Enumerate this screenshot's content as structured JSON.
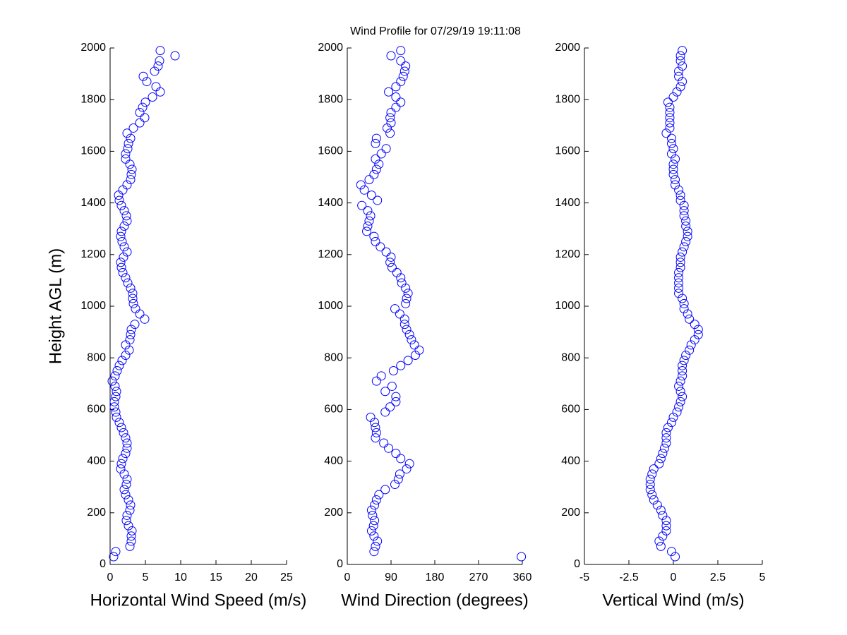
{
  "title": "Wind Profile for  07/29/19 19:11:08",
  "chart_data": [
    {
      "type": "scatter",
      "xlabel": "Horizontal Wind Speed (m/s)",
      "ylabel": "Height AGL (m)",
      "color": "#0000ff",
      "xlim": [
        0,
        25
      ],
      "xticks": [
        0,
        5,
        10,
        15,
        20,
        25
      ],
      "ylim": [
        0,
        2000
      ],
      "yticks": [
        0,
        200,
        400,
        600,
        800,
        1000,
        1200,
        1400,
        1600,
        1800,
        2000
      ],
      "x": [
        0.5,
        0.8,
        2.8,
        3.0,
        3.0,
        3.1,
        2.6,
        2.3,
        2.4,
        2.8,
        2.9,
        2.6,
        2.2,
        2.0,
        2.3,
        2.4,
        2.0,
        1.5,
        1.6,
        1.8,
        2.2,
        2.4,
        2.4,
        2.2,
        1.9,
        1.6,
        1.3,
        0.9,
        0.8,
        0.6,
        0.6,
        0.8,
        0.9,
        0.7,
        0.3,
        0.7,
        1.0,
        1.3,
        1.7,
        2.2,
        2.7,
        2.2,
        2.8,
        2.9,
        3.0,
        3.5,
        4.9,
        4.2,
        3.6,
        3.3,
        3.2,
        3.2,
        2.9,
        2.5,
        2.2,
        1.8,
        1.6,
        1.5,
        1.9,
        2.4,
        2.0,
        1.7,
        1.5,
        1.6,
        2.0,
        2.4,
        2.3,
        2.0,
        1.6,
        1.3,
        1.2,
        1.8,
        2.4,
        2.9,
        3.0,
        3.1,
        2.8,
        2.2,
        2.2,
        2.5,
        2.6,
        2.9,
        2.4,
        3.3,
        4.2,
        4.9,
        4.2,
        4.6,
        5.0,
        6.0,
        7.1,
        6.5,
        5.2,
        4.7,
        6.3,
        6.8,
        7.0,
        9.2,
        7.1
      ],
      "y": [
        30,
        50,
        70,
        90,
        110,
        130,
        150,
        170,
        190,
        210,
        230,
        250,
        270,
        290,
        310,
        330,
        350,
        370,
        390,
        410,
        430,
        450,
        470,
        490,
        510,
        530,
        550,
        570,
        590,
        610,
        630,
        650,
        670,
        690,
        710,
        730,
        750,
        770,
        790,
        810,
        830,
        850,
        870,
        890,
        910,
        930,
        950,
        970,
        990,
        1010,
        1030,
        1050,
        1070,
        1090,
        1110,
        1130,
        1150,
        1170,
        1190,
        1210,
        1230,
        1250,
        1270,
        1290,
        1310,
        1330,
        1350,
        1370,
        1390,
        1410,
        1430,
        1450,
        1470,
        1490,
        1510,
        1530,
        1550,
        1570,
        1590,
        1610,
        1630,
        1650,
        1670,
        1690,
        1710,
        1730,
        1750,
        1770,
        1790,
        1810,
        1830,
        1850,
        1870,
        1890,
        1910,
        1930,
        1950,
        1970,
        1990
      ]
    },
    {
      "type": "scatter",
      "xlabel": "Wind Direction (degrees)",
      "color": "#0000ff",
      "xlim": [
        0,
        360
      ],
      "xticks": [
        0,
        90,
        180,
        270,
        360
      ],
      "ylim": [
        0,
        2000
      ],
      "yticks": [
        0,
        200,
        400,
        600,
        800,
        1000,
        1200,
        1400,
        1600,
        1800,
        2000
      ],
      "x": [
        358,
        55,
        58,
        62,
        55,
        50,
        54,
        56,
        52,
        50,
        56,
        60,
        65,
        78,
        98,
        105,
        108,
        122,
        128,
        110,
        100,
        85,
        75,
        58,
        60,
        58,
        56,
        48,
        78,
        88,
        100,
        100,
        78,
        92,
        60,
        70,
        95,
        110,
        125,
        140,
        148,
        138,
        132,
        128,
        122,
        118,
        118,
        108,
        98,
        120,
        122,
        125,
        120,
        112,
        110,
        102,
        92,
        88,
        90,
        80,
        68,
        58,
        55,
        40,
        42,
        45,
        48,
        42,
        30,
        62,
        50,
        35,
        28,
        45,
        55,
        60,
        65,
        58,
        70,
        80,
        58,
        60,
        88,
        82,
        90,
        88,
        90,
        100,
        110,
        100,
        85,
        100,
        110,
        115,
        118,
        120,
        110,
        90,
        110
      ],
      "y": [
        30,
        50,
        70,
        90,
        110,
        130,
        150,
        170,
        190,
        210,
        230,
        250,
        270,
        290,
        310,
        330,
        350,
        370,
        390,
        410,
        430,
        450,
        470,
        490,
        510,
        530,
        550,
        570,
        590,
        610,
        630,
        650,
        670,
        690,
        710,
        730,
        750,
        770,
        790,
        810,
        830,
        850,
        870,
        890,
        910,
        930,
        950,
        970,
        990,
        1010,
        1030,
        1050,
        1070,
        1090,
        1110,
        1130,
        1150,
        1170,
        1190,
        1210,
        1230,
        1250,
        1270,
        1290,
        1310,
        1330,
        1350,
        1370,
        1390,
        1410,
        1430,
        1450,
        1470,
        1490,
        1510,
        1530,
        1550,
        1570,
        1590,
        1610,
        1630,
        1650,
        1670,
        1690,
        1710,
        1730,
        1750,
        1770,
        1790,
        1810,
        1830,
        1850,
        1870,
        1890,
        1910,
        1930,
        1950,
        1970,
        1990
      ]
    },
    {
      "type": "scatter",
      "xlabel": "Vertical Wind (m/s)",
      "color": "#0000ff",
      "xlim": [
        -5,
        5
      ],
      "xticks": [
        -5,
        -2.5,
        0,
        2.5,
        5
      ],
      "ylim": [
        0,
        2000
      ],
      "yticks": [
        0,
        200,
        400,
        600,
        800,
        1000,
        1200,
        1400,
        1600,
        1800,
        2000
      ],
      "x": [
        0.1,
        -0.1,
        -0.7,
        -0.8,
        -0.6,
        -0.4,
        -0.4,
        -0.4,
        -0.6,
        -0.7,
        -0.9,
        -1.1,
        -1.2,
        -1.3,
        -1.3,
        -1.3,
        -1.2,
        -1.1,
        -0.8,
        -0.7,
        -0.6,
        -0.5,
        -0.4,
        -0.4,
        -0.4,
        -0.3,
        -0.1,
        0.0,
        0.2,
        0.3,
        0.4,
        0.5,
        0.4,
        0.3,
        0.4,
        0.5,
        0.5,
        0.5,
        0.6,
        0.7,
        0.9,
        1.0,
        1.2,
        1.4,
        1.4,
        1.2,
        0.9,
        0.8,
        0.6,
        0.6,
        0.5,
        0.3,
        0.3,
        0.3,
        0.3,
        0.3,
        0.4,
        0.4,
        0.4,
        0.5,
        0.6,
        0.7,
        0.8,
        0.8,
        0.7,
        0.7,
        0.6,
        0.6,
        0.6,
        0.4,
        0.4,
        0.3,
        0.1,
        0.1,
        0.0,
        0.0,
        0.0,
        0.1,
        -0.1,
        0.0,
        -0.1,
        -0.1,
        -0.4,
        -0.2,
        -0.2,
        -0.2,
        -0.2,
        -0.2,
        -0.3,
        0.0,
        0.2,
        0.4,
        0.5,
        0.3,
        0.3,
        0.5,
        0.4,
        0.4,
        0.5
      ],
      "y": [
        30,
        50,
        70,
        90,
        110,
        130,
        150,
        170,
        190,
        210,
        230,
        250,
        270,
        290,
        310,
        330,
        350,
        370,
        390,
        410,
        430,
        450,
        470,
        490,
        510,
        530,
        550,
        570,
        590,
        610,
        630,
        650,
        670,
        690,
        710,
        730,
        750,
        770,
        790,
        810,
        830,
        850,
        870,
        890,
        910,
        930,
        950,
        970,
        990,
        1010,
        1030,
        1050,
        1070,
        1090,
        1110,
        1130,
        1150,
        1170,
        1190,
        1210,
        1230,
        1250,
        1270,
        1290,
        1310,
        1330,
        1350,
        1370,
        1390,
        1410,
        1430,
        1450,
        1470,
        1490,
        1510,
        1530,
        1550,
        1570,
        1590,
        1610,
        1630,
        1650,
        1670,
        1690,
        1710,
        1730,
        1750,
        1770,
        1790,
        1810,
        1830,
        1850,
        1870,
        1890,
        1910,
        1930,
        1950,
        1970,
        1990
      ]
    }
  ]
}
